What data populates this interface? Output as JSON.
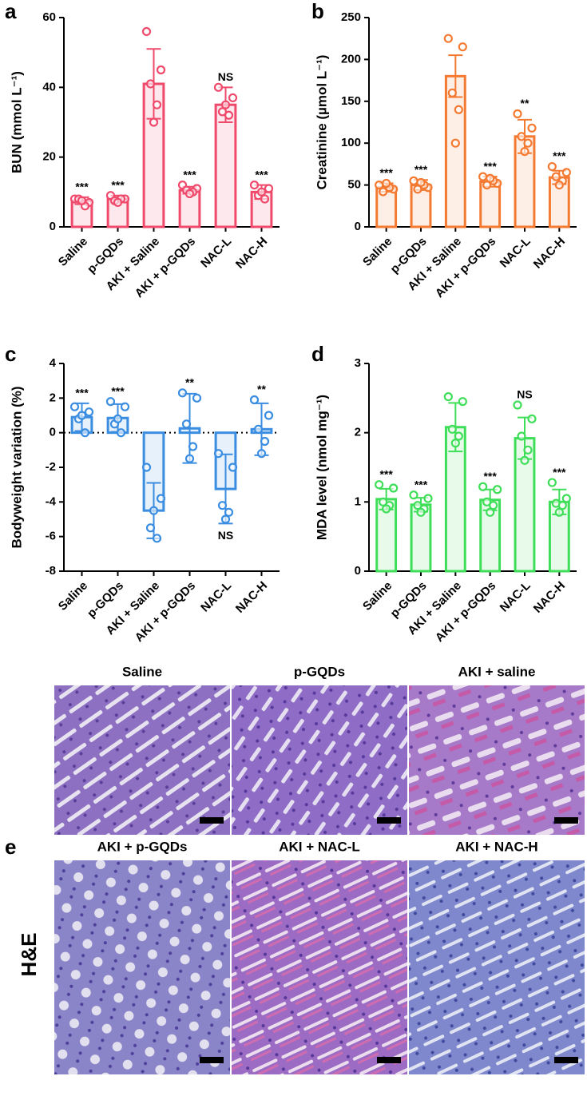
{
  "chart_data": [
    {
      "type": "bar",
      "panel": "a",
      "ylabel": "BUN (mmol L⁻¹)",
      "categories": [
        "Saline",
        "p-GQDs",
        "AKI + Saline",
        "AKI + p-GQDs",
        "NAC-L",
        "NAC-H"
      ],
      "values": [
        7.5,
        8,
        41,
        10.5,
        35,
        10
      ],
      "errors": [
        1,
        1,
        10,
        1,
        5,
        2
      ],
      "points": [
        [
          8,
          7,
          8,
          6,
          7.5
        ],
        [
          9,
          8,
          7.5,
          8,
          7
        ],
        [
          56,
          45,
          41,
          35,
          30
        ],
        [
          12,
          11,
          10.5,
          10,
          9.5
        ],
        [
          40,
          37,
          33,
          32,
          35
        ],
        [
          12,
          11,
          9,
          8,
          10
        ]
      ],
      "annotations": [
        "***",
        "***",
        null,
        "***",
        "NS",
        "***"
      ],
      "color": "#ef4a6c",
      "ylim": [
        0,
        60
      ],
      "yticks": [
        0,
        20,
        40,
        60
      ]
    },
    {
      "type": "bar",
      "panel": "b",
      "ylabel": "Creatinine (µmol L⁻¹)",
      "categories": [
        "Saline",
        "p-GQDs",
        "AKI + Saline",
        "AKI + p-GQDs",
        "NAC-L",
        "NAC-H"
      ],
      "values": [
        47,
        50,
        180,
        54,
        108,
        59
      ],
      "errors": [
        5,
        6,
        25,
        6,
        20,
        8
      ],
      "points": [
        [
          50,
          45,
          42,
          47,
          52
        ],
        [
          55,
          47,
          45,
          50,
          53
        ],
        [
          225,
          215,
          160,
          140,
          100
        ],
        [
          60,
          52,
          50,
          55,
          58
        ],
        [
          135,
          118,
          108,
          100,
          90
        ],
        [
          72,
          65,
          60,
          55,
          50
        ]
      ],
      "annotations": [
        "***",
        "***",
        null,
        "***",
        "**",
        "***"
      ],
      "color": "#f47a32",
      "ylim": [
        0,
        250
      ],
      "yticks": [
        0,
        50,
        100,
        150,
        200,
        250
      ]
    },
    {
      "type": "bar",
      "panel": "c",
      "ylabel": "Bodyweight variation (%)",
      "categories": [
        "Saline",
        "p-GQDs",
        "AKI + Saline",
        "AKI + p-GQDs",
        "NAC-L",
        "NAC-H"
      ],
      "values": [
        0.9,
        0.85,
        -4.5,
        0.25,
        -3.25,
        0.2
      ],
      "errors": [
        0.8,
        0.8,
        1.6,
        2,
        2,
        1.5
      ],
      "points": [
        [
          1.5,
          1.2,
          0.8,
          0,
          1
        ],
        [
          1.8,
          1.5,
          0.5,
          0,
          0.8
        ],
        [
          -2,
          -3.8,
          -5.5,
          -6.1,
          -4.5
        ],
        [
          2.3,
          2,
          0.5,
          -0.8,
          -1.5
        ],
        [
          -1.2,
          -2,
          -4.2,
          -4.6,
          -5
        ],
        [
          1.9,
          1,
          0.2,
          -0.5,
          -1.2
        ]
      ],
      "annotations": [
        "***",
        "***",
        null,
        "**",
        "NS",
        "**"
      ],
      "color": "#3a8de0",
      "ylim": [
        -8,
        4
      ],
      "yticks": [
        -8,
        -6,
        -4,
        -2,
        0,
        2,
        4
      ],
      "zero_line": true
    },
    {
      "type": "bar",
      "panel": "d",
      "ylabel": "MDA level (nmol mg⁻¹)",
      "categories": [
        "Saline",
        "p-GQDs",
        "AKI + Saline",
        "AKI + p-GQDs",
        "NAC-L",
        "NAC-H"
      ],
      "values": [
        1.04,
        0.96,
        2.08,
        1.03,
        1.92,
        1.0
      ],
      "errors": [
        0.15,
        0.1,
        0.35,
        0.15,
        0.3,
        0.18
      ],
      "points": [
        [
          1.25,
          1.2,
          1.0,
          0.95,
          0.9
        ],
        [
          1.1,
          1.05,
          0.95,
          0.9,
          0.85
        ],
        [
          2.52,
          2.45,
          2.05,
          1.95,
          1.85
        ],
        [
          1.22,
          1.18,
          1.0,
          0.95,
          0.85
        ],
        [
          2.4,
          2.2,
          1.95,
          1.75,
          1.6
        ],
        [
          1.28,
          1.05,
          0.98,
          0.95,
          0.85
        ]
      ],
      "annotations": [
        "***",
        "***",
        null,
        "***",
        "NS",
        "***"
      ],
      "color": "#3ede58",
      "ylim": [
        0,
        3
      ],
      "yticks": [
        0,
        1,
        2,
        3
      ]
    }
  ],
  "figure_e": {
    "label": "e",
    "stain": "H&E",
    "panels": [
      "Saline",
      "p-GQDs",
      "AKI + saline",
      "AKI + p-GQDs",
      "AKI + NAC-L",
      "AKI + NAC-H"
    ]
  }
}
